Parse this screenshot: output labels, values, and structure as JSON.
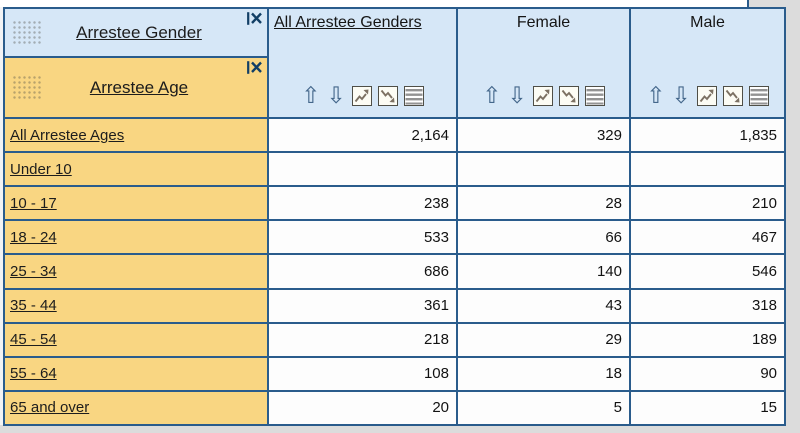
{
  "pivot": {
    "column_dimension": {
      "label": "Arrestee Gender"
    },
    "row_dimension": {
      "label": "Arrestee Age"
    },
    "columns": [
      {
        "label": "All Arrestee Genders",
        "is_total": true
      },
      {
        "label": "Female",
        "is_total": false
      },
      {
        "label": "Male",
        "is_total": false
      }
    ],
    "rows": [
      {
        "label": "All Arrestee Ages",
        "values": [
          "2,164",
          "329",
          "1,835"
        ]
      },
      {
        "label": "Under 10",
        "values": [
          "",
          "",
          ""
        ]
      },
      {
        "label": "10 - 17",
        "values": [
          "238",
          "28",
          "210"
        ]
      },
      {
        "label": "18 - 24",
        "values": [
          "533",
          "66",
          "467"
        ]
      },
      {
        "label": "25 - 34",
        "values": [
          "686",
          "140",
          "546"
        ]
      },
      {
        "label": "35 - 44",
        "values": [
          "361",
          "43",
          "318"
        ]
      },
      {
        "label": "45 - 54",
        "values": [
          "218",
          "29",
          "189"
        ]
      },
      {
        "label": "55 - 64",
        "values": [
          "108",
          "18",
          "90"
        ]
      },
      {
        "label": "65 and over",
        "values": [
          "20",
          "5",
          "15"
        ]
      }
    ],
    "header_icons": {
      "arrow_up_glyph": "⇧",
      "arrow_down_glyph": "⇩",
      "boxed_sort_ascending": "zigzag-up-arrow-box",
      "boxed_sort_descending": "zigzag-down-arrow-box",
      "show_list": "stacked-lines-box"
    },
    "corner_icons": {
      "remove": "x-with-bar",
      "drag_handle": "dot-grid"
    },
    "colors": {
      "header_blue": "#d6e7f7",
      "row_header_orange": "#f9d682",
      "grid_border": "#2a5c8c",
      "cell_background": "#fdfdfd",
      "page_background": "#dcdcdc"
    }
  }
}
